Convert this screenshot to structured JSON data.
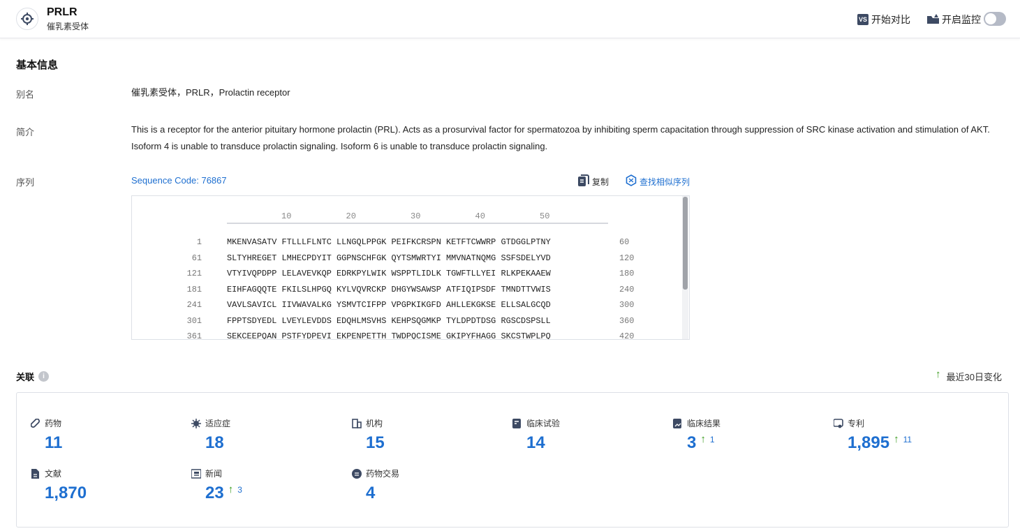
{
  "header": {
    "title": "PRLR",
    "subtitle": "催乳素受体",
    "compare_label": "开始对比",
    "monitor_label": "开启监控",
    "monitor_on": false
  },
  "basic": {
    "section_title": "基本信息",
    "alias_label": "别名",
    "alias_value": "催乳素受体，PRLR，Prolactin receptor",
    "summary_label": "简介",
    "summary_value": "This is a receptor for the anterior pituitary hormone prolactin (PRL). Acts as a prosurvival factor for spermatozoa by inhibiting sperm capacitation through suppression of SRC kinase activation and stimulation of AKT. Isoform 4 is unable to transduce prolactin signaling. Isoform 6 is unable to transduce prolactin signaling.",
    "sequence_label": "序列",
    "sequence_code": "Sequence Code: 76867",
    "copy_label": "复制",
    "find_similar_label": "查找相似序列"
  },
  "sequence": {
    "ruler": [
      "10",
      "20",
      "30",
      "40",
      "50"
    ],
    "rows": [
      {
        "start": "1",
        "seq": "MKENVASATV FTLLLFLNTC LLNGQLPPGK PEIFKCRSPN KETFTCWWRP GTDGGLPTNY",
        "end": "60"
      },
      {
        "start": "61",
        "seq": "SLTYHREGET LMHECPDYIT GGPNSCHFGK QYTSMWRTYI MMVNATNQMG SSFSDELYVD",
        "end": "120"
      },
      {
        "start": "121",
        "seq": "VTYIVQPDPP LELAVEVKQP EDRKPYLWIK WSPPTLIDLK TGWFTLLYEI RLKPEKAAEW",
        "end": "180"
      },
      {
        "start": "181",
        "seq": "EIHFAGQQTE FKILSLHPGQ KYLVQVRCKP DHGYWSAWSP ATFIQIPSDF TMNDTTVWIS",
        "end": "240"
      },
      {
        "start": "241",
        "seq": "VAVLSAVICL IIVWAVALKG YSMVTCIFPP VPGPKIKGFD AHLLEKGKSE ELLSALGCQD",
        "end": "300"
      },
      {
        "start": "301",
        "seq": "FPPTSDYEDL LVEYLEVDDS EDQHLMSVHS KEHPSQGMKP TYLDPDTDSG RGSCDSPSLL",
        "end": "360"
      },
      {
        "start": "361",
        "seq": "SEKCEEPQAN PSTFYDPEVI EKPENPETTH TWDPQCISME GKIPYFHAGG SKCSTWPLPQ",
        "end": "420"
      }
    ]
  },
  "related": {
    "section_title": "关联",
    "recent_change_label": "最近30日变化",
    "stats": [
      {
        "label": "药物",
        "value": "11",
        "delta": "",
        "icon": "pill-icon"
      },
      {
        "label": "适应症",
        "value": "18",
        "delta": "",
        "icon": "virus-icon"
      },
      {
        "label": "机构",
        "value": "15",
        "delta": "",
        "icon": "building-icon"
      },
      {
        "label": "临床试验",
        "value": "14",
        "delta": "",
        "icon": "clinical-trial-icon"
      },
      {
        "label": "临床结果",
        "value": "3",
        "delta": "1",
        "icon": "clinical-result-icon"
      },
      {
        "label": "专利",
        "value": "1,895",
        "delta": "11",
        "icon": "patent-icon"
      },
      {
        "label": "文献",
        "value": "1,870",
        "delta": "",
        "icon": "document-icon"
      },
      {
        "label": "新闻",
        "value": "23",
        "delta": "3",
        "icon": "news-icon"
      },
      {
        "label": "药物交易",
        "value": "4",
        "delta": "",
        "icon": "deal-icon"
      }
    ]
  },
  "colors": {
    "accent": "#1e6fd0",
    "up": "#3a9b1e"
  }
}
